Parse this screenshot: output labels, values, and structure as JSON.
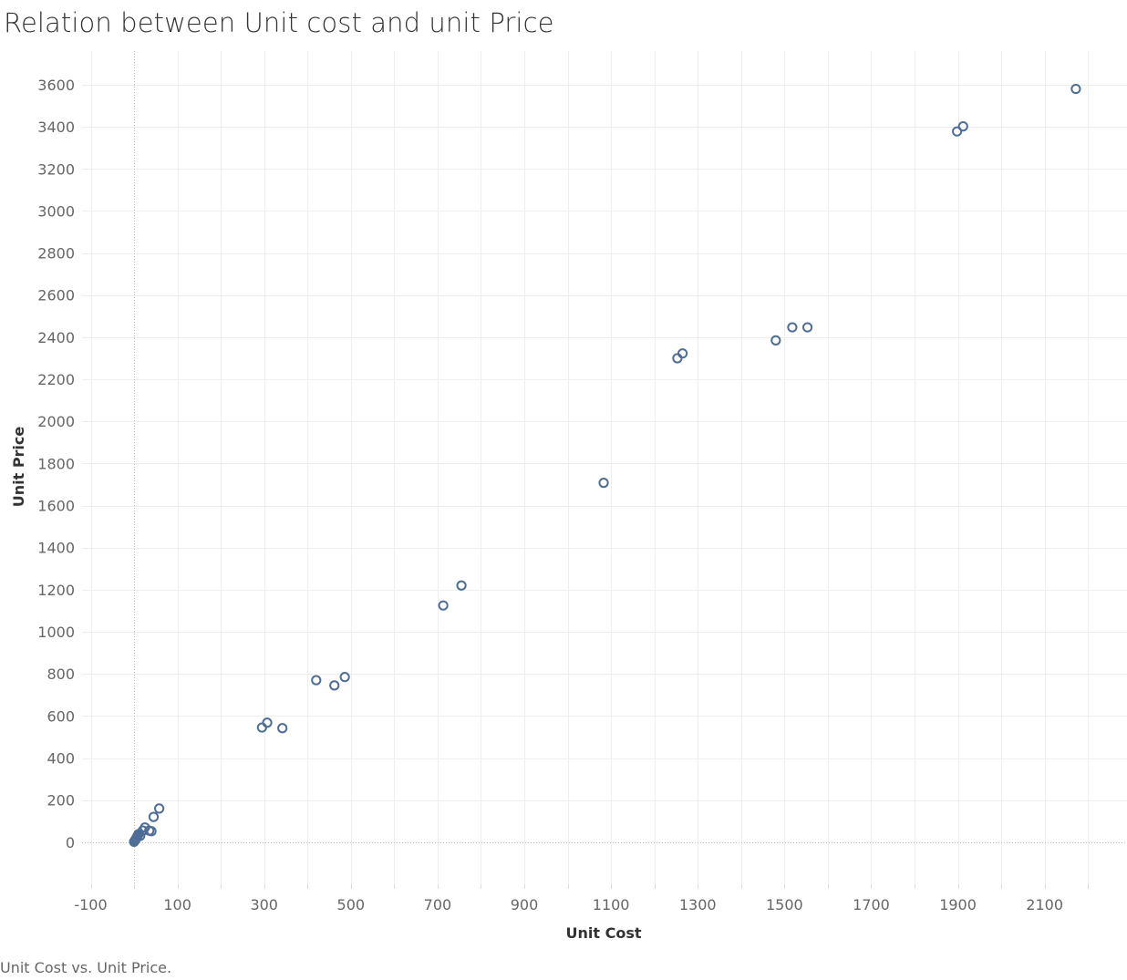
{
  "chart_data": {
    "type": "scatter",
    "title": "Relation between Unit cost and unit Price",
    "caption": "Unit Cost vs. Unit Price.",
    "xlabel": "Unit Cost",
    "ylabel": "Unit Price",
    "xlim": [
      -120,
      2290
    ],
    "ylim": [
      -200,
      3760
    ],
    "x_ticks": [
      -100,
      100,
      300,
      500,
      700,
      900,
      1100,
      1300,
      1500,
      1700,
      1900,
      2100
    ],
    "x_minor_step": 100,
    "y_ticks": [
      0,
      200,
      400,
      600,
      800,
      1000,
      1200,
      1400,
      1600,
      1800,
      2000,
      2200,
      2400,
      2600,
      2800,
      3000,
      3200,
      3400,
      3600
    ],
    "grid": true,
    "zero_lines": true,
    "colors": {
      "marker": "#4e6d97",
      "grid": "#eeeeee",
      "zero_line": "#bbbbbb",
      "tick_text": "#666666",
      "title_text": "#333333"
    },
    "points": [
      {
        "x": 0,
        "y": 2
      },
      {
        "x": 2,
        "y": 8
      },
      {
        "x": 4,
        "y": 15
      },
      {
        "x": 6,
        "y": 22
      },
      {
        "x": 8,
        "y": 30
      },
      {
        "x": 10,
        "y": 38
      },
      {
        "x": 14,
        "y": 30
      },
      {
        "x": 20,
        "y": 55
      },
      {
        "x": 25,
        "y": 70
      },
      {
        "x": 35,
        "y": 55
      },
      {
        "x": 40,
        "y": 52
      },
      {
        "x": 45,
        "y": 120
      },
      {
        "x": 58,
        "y": 160
      },
      {
        "x": 295,
        "y": 545
      },
      {
        "x": 307,
        "y": 568
      },
      {
        "x": 342,
        "y": 542
      },
      {
        "x": 420,
        "y": 770
      },
      {
        "x": 462,
        "y": 745
      },
      {
        "x": 486,
        "y": 785
      },
      {
        "x": 713,
        "y": 1125
      },
      {
        "x": 755,
        "y": 1220
      },
      {
        "x": 1083,
        "y": 1708
      },
      {
        "x": 1253,
        "y": 2300
      },
      {
        "x": 1265,
        "y": 2323
      },
      {
        "x": 1480,
        "y": 2385
      },
      {
        "x": 1518,
        "y": 2447
      },
      {
        "x": 1553,
        "y": 2447
      },
      {
        "x": 1898,
        "y": 3378
      },
      {
        "x": 1912,
        "y": 3402
      },
      {
        "x": 2172,
        "y": 3580
      }
    ]
  }
}
